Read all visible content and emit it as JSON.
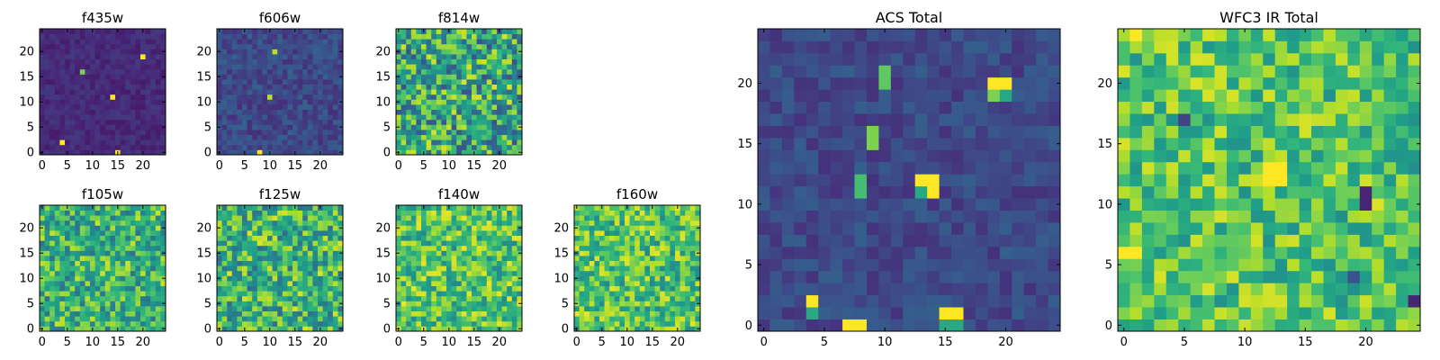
{
  "chart_data": [
    {
      "type": "heatmap",
      "title": "f435w",
      "colormap": "viridis",
      "grid_size": 25,
      "xticks": [
        "0",
        "5",
        "10",
        "15",
        "20"
      ],
      "yticks": [
        "0",
        "5",
        "10",
        "15",
        "20"
      ],
      "xlim": [
        -0.5,
        24.5
      ],
      "ylim": [
        -0.5,
        24.5
      ],
      "grid": false,
      "base_level": 0.12,
      "noise": 0.1,
      "hotspots": [
        {
          "x": 4,
          "y": 2,
          "value": 1.0
        },
        {
          "x": 8,
          "y": 16,
          "value": 0.8
        },
        {
          "x": 14,
          "y": 11,
          "value": 1.0
        },
        {
          "x": 20,
          "y": 19,
          "value": 1.0
        },
        {
          "x": 15,
          "y": 0,
          "value": 1.0
        }
      ]
    },
    {
      "type": "heatmap",
      "title": "f606w",
      "colormap": "viridis",
      "grid_size": 25,
      "xticks": [
        "0",
        "5",
        "10",
        "15",
        "20"
      ],
      "yticks": [
        "0",
        "5",
        "10",
        "15",
        "20"
      ],
      "xlim": [
        -0.5,
        24.5
      ],
      "ylim": [
        -0.5,
        24.5
      ],
      "grid": false,
      "base_level": 0.22,
      "noise": 0.18,
      "hotspots": [
        {
          "x": 8,
          "y": 0,
          "value": 1.0
        },
        {
          "x": 10,
          "y": 11,
          "value": 0.9
        },
        {
          "x": 11,
          "y": 20,
          "value": 0.9
        }
      ]
    },
    {
      "type": "heatmap",
      "title": "f814w",
      "colormap": "viridis",
      "grid_size": 25,
      "xticks": [
        "0",
        "5",
        "10",
        "15",
        "20"
      ],
      "yticks": [
        "0",
        "5",
        "10",
        "15",
        "20"
      ],
      "xlim": [
        -0.5,
        24.5
      ],
      "ylim": [
        -0.5,
        24.5
      ],
      "grid": false,
      "base_level": 0.6,
      "noise": 0.7,
      "hotspots": []
    },
    {
      "type": "heatmap",
      "title": "f105w",
      "colormap": "viridis",
      "grid_size": 25,
      "xticks": [
        "0",
        "5",
        "10",
        "15",
        "20"
      ],
      "yticks": [
        "0",
        "5",
        "10",
        "15",
        "20"
      ],
      "xlim": [
        -0.5,
        24.5
      ],
      "ylim": [
        -0.5,
        24.5
      ],
      "grid": false,
      "base_level": 0.65,
      "noise": 0.55,
      "hotspots": []
    },
    {
      "type": "heatmap",
      "title": "f125w",
      "colormap": "viridis",
      "grid_size": 25,
      "xticks": [
        "0",
        "5",
        "10",
        "15",
        "20"
      ],
      "yticks": [
        "0",
        "5",
        "10",
        "15",
        "20"
      ],
      "xlim": [
        -0.5,
        24.5
      ],
      "ylim": [
        -0.5,
        24.5
      ],
      "grid": false,
      "base_level": 0.65,
      "noise": 0.6,
      "hotspots": []
    },
    {
      "type": "heatmap",
      "title": "f140w",
      "colormap": "viridis",
      "grid_size": 25,
      "xticks": [
        "0",
        "5",
        "10",
        "15",
        "20"
      ],
      "yticks": [
        "0",
        "5",
        "10",
        "15",
        "20"
      ],
      "xlim": [
        -0.5,
        24.5
      ],
      "ylim": [
        -0.5,
        24.5
      ],
      "grid": false,
      "base_level": 0.72,
      "noise": 0.5,
      "hotspots": []
    },
    {
      "type": "heatmap",
      "title": "f160w",
      "colormap": "viridis",
      "grid_size": 25,
      "xticks": [
        "0",
        "5",
        "10",
        "15",
        "20"
      ],
      "yticks": [
        "0",
        "5",
        "10",
        "15",
        "20"
      ],
      "xlim": [
        -0.5,
        24.5
      ],
      "ylim": [
        -0.5,
        24.5
      ],
      "grid": false,
      "base_level": 0.72,
      "noise": 0.5,
      "hotspots": []
    },
    {
      "type": "heatmap",
      "title": "ACS Total",
      "colormap": "viridis",
      "grid_size": 25,
      "xticks": [
        "0",
        "5",
        "10",
        "15",
        "20"
      ],
      "yticks": [
        "0",
        "5",
        "10",
        "15",
        "20"
      ],
      "xlim": [
        -0.5,
        24.5
      ],
      "ylim": [
        -0.5,
        24.5
      ],
      "grid": false,
      "base_level": 0.22,
      "noise": 0.16,
      "hotspots": [
        {
          "x": 4,
          "y": 2,
          "value": 1.0
        },
        {
          "x": 4,
          "y": 1,
          "value": 0.6
        },
        {
          "x": 7,
          "y": 0,
          "value": 1.0
        },
        {
          "x": 8,
          "y": 0,
          "value": 1.0
        },
        {
          "x": 15,
          "y": 1,
          "value": 1.0
        },
        {
          "x": 16,
          "y": 1,
          "value": 1.0
        },
        {
          "x": 15,
          "y": 0,
          "value": 0.6
        },
        {
          "x": 16,
          "y": 0,
          "value": 0.6
        },
        {
          "x": 8,
          "y": 12,
          "value": 0.7
        },
        {
          "x": 8,
          "y": 11,
          "value": 0.7
        },
        {
          "x": 9,
          "y": 16,
          "value": 0.8
        },
        {
          "x": 9,
          "y": 15,
          "value": 0.8
        },
        {
          "x": 10,
          "y": 21,
          "value": 0.75
        },
        {
          "x": 10,
          "y": 20,
          "value": 0.75
        },
        {
          "x": 13,
          "y": 12,
          "value": 1.0
        },
        {
          "x": 14,
          "y": 12,
          "value": 1.0
        },
        {
          "x": 14,
          "y": 11,
          "value": 1.0
        },
        {
          "x": 13,
          "y": 11,
          "value": 0.6
        },
        {
          "x": 19,
          "y": 20,
          "value": 1.0
        },
        {
          "x": 20,
          "y": 20,
          "value": 1.0
        },
        {
          "x": 19,
          "y": 19,
          "value": 0.8
        },
        {
          "x": 20,
          "y": 19,
          "value": 0.6
        }
      ]
    },
    {
      "type": "heatmap",
      "title": "WFC3 IR Total",
      "colormap": "viridis",
      "grid_size": 25,
      "xticks": [
        "0",
        "5",
        "10",
        "15",
        "20"
      ],
      "yticks": [
        "0",
        "5",
        "10",
        "15",
        "20"
      ],
      "xlim": [
        -0.5,
        24.5
      ],
      "ylim": [
        -0.5,
        24.5
      ],
      "grid": false,
      "base_level": 0.72,
      "noise": 0.45,
      "hotspots": [
        {
          "x": 12,
          "y": 13,
          "value": 1.0
        },
        {
          "x": 13,
          "y": 13,
          "value": 1.0
        },
        {
          "x": 12,
          "y": 12,
          "value": 1.0
        },
        {
          "x": 13,
          "y": 12,
          "value": 1.0
        },
        {
          "x": 1,
          "y": 6,
          "value": 1.0
        },
        {
          "x": 0,
          "y": 6,
          "value": 1.0
        },
        {
          "x": 1,
          "y": 24,
          "value": 1.0
        },
        {
          "x": 20,
          "y": 11,
          "value": 0.1
        },
        {
          "x": 20,
          "y": 10,
          "value": 0.1
        },
        {
          "x": 5,
          "y": 17,
          "value": 0.2
        },
        {
          "x": 19,
          "y": 4,
          "value": 0.25
        },
        {
          "x": 24,
          "y": 2,
          "value": 0.1
        }
      ]
    }
  ]
}
